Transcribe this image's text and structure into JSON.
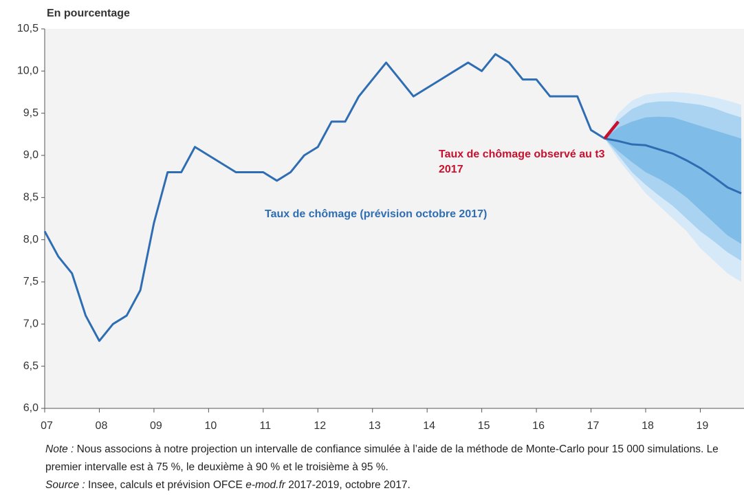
{
  "chart_data": {
    "type": "line",
    "y_axis_title": "En pourcentage",
    "xlim": [
      7,
      19.8
    ],
    "xticks": [
      {
        "value": 7,
        "label": "07"
      },
      {
        "value": 8,
        "label": "08"
      },
      {
        "value": 9,
        "label": "09"
      },
      10,
      11,
      12,
      13,
      14,
      15,
      16,
      17,
      18,
      19
    ],
    "ylim": [
      6,
      10.5
    ],
    "yticks": [
      {
        "value": 6,
        "label": "6,0"
      },
      {
        "value": 6.5,
        "label": "6,5"
      },
      {
        "value": 7,
        "label": "7,0"
      },
      {
        "value": 7.5,
        "label": "7,5"
      },
      {
        "value": 8,
        "label": "8,0"
      },
      {
        "value": 8.5,
        "label": "8,5"
      },
      {
        "value": 9,
        "label": "9,0"
      },
      {
        "value": 9.5,
        "label": "9,5"
      },
      {
        "value": 10,
        "label": "10,0"
      },
      {
        "value": 10.5,
        "label": "10,5"
      }
    ],
    "series": [
      {
        "name": "Taux de chômage (prévision octobre 2017)",
        "color": "#2f6db3",
        "x": [
          7,
          7.25,
          7.5,
          7.75,
          8,
          8.25,
          8.5,
          8.75,
          9,
          9.25,
          9.5,
          9.75,
          10,
          10.25,
          10.5,
          10.75,
          11,
          11.25,
          11.5,
          11.75,
          12,
          12.25,
          12.5,
          12.75,
          13,
          13.25,
          13.5,
          13.75,
          14,
          14.25,
          14.5,
          14.75,
          15,
          15.25,
          15.5,
          15.75,
          16,
          16.25,
          16.5,
          16.75,
          17,
          17.25,
          17.5,
          17.75,
          18,
          18.25,
          18.5,
          18.75,
          19,
          19.25,
          19.5,
          19.75
        ],
        "values": [
          8.1,
          7.8,
          7.6,
          7.1,
          6.8,
          7.0,
          7.1,
          7.4,
          8.2,
          8.8,
          8.8,
          9.1,
          9.0,
          8.9,
          8.8,
          8.8,
          8.8,
          8.7,
          8.8,
          9.0,
          9.1,
          9.4,
          9.4,
          9.7,
          9.9,
          10.1,
          9.9,
          9.7,
          9.8,
          9.9,
          10.0,
          10.1,
          10.0,
          10.2,
          10.1,
          9.9,
          9.9,
          9.7,
          9.7,
          9.7,
          9.3,
          9.2,
          9.17,
          9.13,
          9.12,
          9.07,
          9.02,
          8.94,
          8.85,
          8.74,
          8.62,
          8.55
        ]
      },
      {
        "name": "Taux de chômage observé au t3 2017",
        "color": "#c8102e",
        "x": [
          17.25,
          17.5
        ],
        "values": [
          9.2,
          9.4
        ]
      }
    ],
    "band_x": [
      17.25,
      17.5,
      17.75,
      18,
      18.25,
      18.5,
      18.75,
      19,
      19.25,
      19.5,
      19.75
    ],
    "bands": [
      {
        "color": "#d6e9f8",
        "upper": [
          9.2,
          9.5,
          9.65,
          9.72,
          9.74,
          9.75,
          9.74,
          9.72,
          9.69,
          9.65,
          9.6
        ],
        "lower": [
          9.2,
          8.95,
          8.75,
          8.55,
          8.4,
          8.25,
          8.1,
          7.9,
          7.75,
          7.6,
          7.5
        ]
      },
      {
        "color": "#aad3f1",
        "upper": [
          9.2,
          9.42,
          9.55,
          9.62,
          9.64,
          9.64,
          9.62,
          9.6,
          9.56,
          9.5,
          9.45
        ],
        "lower": [
          9.2,
          9.0,
          8.8,
          8.65,
          8.52,
          8.4,
          8.25,
          8.1,
          7.98,
          7.85,
          7.75
        ]
      },
      {
        "color": "#80bce8",
        "upper": [
          9.2,
          9.33,
          9.4,
          9.45,
          9.46,
          9.45,
          9.4,
          9.35,
          9.3,
          9.25,
          9.2
        ],
        "lower": [
          9.2,
          9.05,
          8.92,
          8.8,
          8.72,
          8.62,
          8.5,
          8.35,
          8.2,
          8.05,
          7.95
        ]
      }
    ]
  },
  "footer": {
    "note_label": "Note :",
    "note": "Nous associons à notre projection un intervalle de confiance simulée à l’aide de la méthode de Monte-Carlo pour 15 000 simulations. Le premier intervalle est à 75 %, le deuxième à 90 % et le troisième à 95 %.",
    "source_label": "Source :",
    "source_parts": [
      "Insee, calculs et prévision OFCE",
      "e-mod.fr",
      "2017-2019, octobre 2017."
    ]
  }
}
